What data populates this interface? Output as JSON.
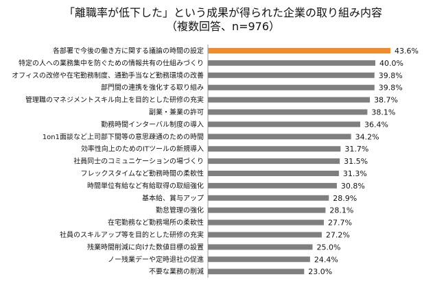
{
  "chart_data": {
    "type": "bar",
    "orientation": "horizontal",
    "title": "「離職率が低下した」という成果が得られた企業の取り組み内容",
    "subtitle": "（複数回答、n=976）",
    "value_suffix": "%",
    "xlim": [
      0,
      45
    ],
    "grid": false,
    "colors": {
      "highlight": "#f08c2e",
      "default": "#7f7f7f",
      "axis": "#999999"
    },
    "categories": [
      "各部署で今後の働き方に関する議論の時間の設定",
      "特定の人への業務集中を防ぐための情報共有の仕組みづくり",
      "オフィスの改修や在宅勤務制度、通勤手当など勤務環境の改善",
      "部門間の連携を強化する取り組み",
      "管理職のマネジメントスキル向上を目的とした研修の充実",
      "副業・兼業の許可",
      "勤務時間インターバル制度の導入",
      "1on1面談など上司部下間等の意思疎通のための時間",
      "効率性向上のためのITツールの新規導入",
      "社員同士のコミュニケーションの場づくり",
      "フレックスタイムなど勤務時間の柔軟性",
      "時間単位有給など有給取得の取組強化",
      "基本給、賞与アップ",
      "勤怠管理の強化",
      "在宅勤務など勤務場所の柔軟性",
      "社員のスキルアップ等を目的とした研修の充実",
      "残業時間削減に向けた数値目標の設置",
      "ノー残業デーや定時退社の促進",
      "不要な業務の削減"
    ],
    "values": [
      43.6,
      40.0,
      39.8,
      39.8,
      38.7,
      38.1,
      36.4,
      34.2,
      31.7,
      31.5,
      31.3,
      30.8,
      28.9,
      28.1,
      27.7,
      27.2,
      25.0,
      24.4,
      23.0
    ],
    "value_labels": [
      "43.6%",
      "40.0%",
      "39.8%",
      "39.8%",
      "38.7%",
      "38.1%",
      "36.4%",
      "34.2%",
      "31.7%",
      "31.5%",
      "31.3%",
      "30.8%",
      "28.9%",
      "28.1%",
      "27.7%",
      "27.2%",
      "25.0%",
      "24.4%",
      "23.0%"
    ],
    "highlight_index": 0
  }
}
